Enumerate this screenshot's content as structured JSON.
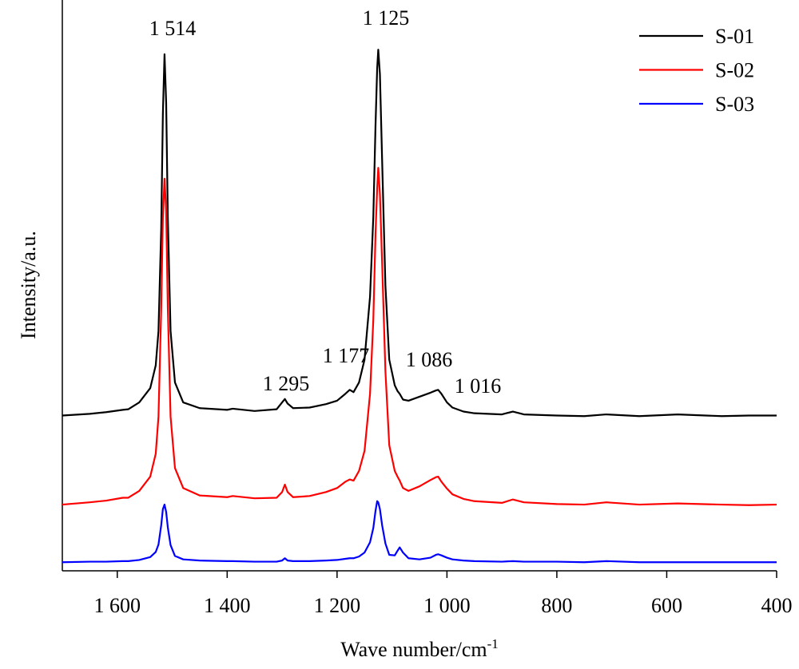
{
  "chart_data": {
    "type": "line",
    "xlabel": "Wave number/cm",
    "xlabel_sup": "-1",
    "ylabel": "Intensity/a.u.",
    "xlim": [
      1700,
      400
    ],
    "ylim": [
      0,
      100
    ],
    "xticks": [
      {
        "value": 1600,
        "label": "1 600"
      },
      {
        "value": 1400,
        "label": "1 400"
      },
      {
        "value": 1200,
        "label": "1 200"
      },
      {
        "value": 1000,
        "label": "1 000"
      },
      800,
      600,
      400
    ],
    "legend": "upper right",
    "annotations": [
      "1 514",
      "1 125",
      "1 295",
      "1 177",
      "1 086",
      "1 016"
    ],
    "x": [
      1700,
      1650,
      1620,
      1590,
      1580,
      1560,
      1540,
      1530,
      1525,
      1520,
      1517,
      1514,
      1511,
      1508,
      1503,
      1495,
      1480,
      1450,
      1400,
      1390,
      1350,
      1310,
      1300,
      1295,
      1290,
      1280,
      1250,
      1220,
      1200,
      1185,
      1177,
      1170,
      1160,
      1150,
      1140,
      1134,
      1130,
      1127,
      1125,
      1122,
      1118,
      1112,
      1105,
      1095,
      1090,
      1086,
      1080,
      1070,
      1050,
      1030,
      1020,
      1016,
      1010,
      1000,
      990,
      970,
      950,
      900,
      880,
      860,
      800,
      750,
      710,
      650,
      580,
      500,
      450,
      400
    ],
    "series": [
      {
        "name": "S-01",
        "color": "#000000",
        "values": [
          27.2,
          27.5,
          27.8,
          28.2,
          28.3,
          29.5,
          32,
          36,
          42,
          60,
          80,
          90.5,
          82,
          62,
          42,
          33,
          29.5,
          28.5,
          28.2,
          28.4,
          28,
          28.3,
          29.5,
          30.1,
          29.3,
          28.5,
          28.6,
          29.2,
          29.8,
          31,
          31.7,
          31.3,
          33,
          37,
          48,
          62,
          78,
          88,
          91.3,
          87,
          72,
          50,
          37,
          32.5,
          31.5,
          31,
          30,
          29.8,
          30.5,
          31.2,
          31.6,
          31.7,
          31,
          29.5,
          28.6,
          27.9,
          27.6,
          27.4,
          27.9,
          27.4,
          27.2,
          27.1,
          27.4,
          27.1,
          27.4,
          27.1,
          27.2,
          27.2
        ]
      },
      {
        "name": "S-02",
        "color": "#ff0000",
        "values": [
          11.6,
          12,
          12.3,
          12.8,
          12.8,
          14,
          16.5,
          20.5,
          27,
          46,
          62,
          68.7,
          63,
          46,
          27,
          18,
          14.5,
          13.2,
          12.9,
          13.1,
          12.7,
          12.8,
          13.8,
          15.1,
          13.8,
          12.9,
          13.1,
          13.8,
          14.5,
          15.6,
          16,
          15.8,
          17.5,
          21,
          31,
          44,
          59,
          67,
          70.6,
          66,
          54,
          35,
          22,
          17.5,
          16.5,
          15.8,
          14.5,
          14,
          14.8,
          15.9,
          16.4,
          16.5,
          15.6,
          14.4,
          13.4,
          12.6,
          12.2,
          11.9,
          12.5,
          12,
          11.7,
          11.6,
          12,
          11.6,
          11.8,
          11.6,
          11.5,
          11.6
        ]
      },
      {
        "name": "S-03",
        "color": "#0000ff",
        "values": [
          1.5,
          1.6,
          1.6,
          1.7,
          1.7,
          1.9,
          2.4,
          3.3,
          4.6,
          8,
          10.8,
          11.6,
          10.3,
          7.6,
          4.5,
          2.6,
          2,
          1.8,
          1.7,
          1.7,
          1.6,
          1.6,
          1.8,
          2.2,
          1.8,
          1.7,
          1.7,
          1.8,
          1.9,
          2.1,
          2.2,
          2.2,
          2.5,
          3.2,
          5,
          7.5,
          10.5,
          12.2,
          12,
          10.8,
          8,
          4.8,
          2.8,
          2.7,
          3.5,
          4.1,
          3.2,
          2.2,
          2,
          2.3,
          2.8,
          2.9,
          2.7,
          2.3,
          2,
          1.8,
          1.7,
          1.6,
          1.7,
          1.6,
          1.6,
          1.5,
          1.7,
          1.5,
          1.5,
          1.5,
          1.5,
          1.5
        ]
      }
    ]
  }
}
